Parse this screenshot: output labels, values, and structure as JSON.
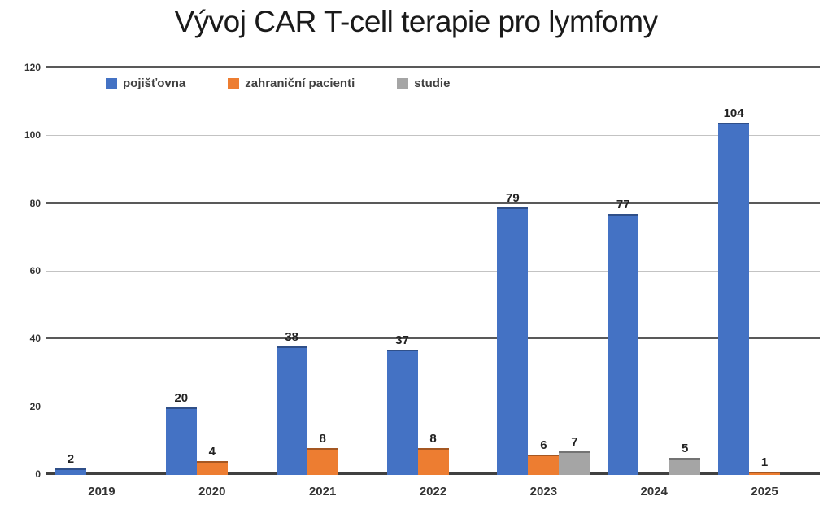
{
  "chart_data": {
    "type": "bar",
    "title": "Vývoj CAR T-cell terapie pro lymfomy",
    "categories": [
      "2019",
      "2020",
      "2021",
      "2022",
      "2023",
      "2024",
      "2025"
    ],
    "series": [
      {
        "name": "pojišťovna",
        "color": "#4472C4",
        "values": [
          2,
          20,
          38,
          37,
          79,
          77,
          104
        ]
      },
      {
        "name": "zahraniční pacienti",
        "color": "#ED7D31",
        "values": [
          0,
          4,
          8,
          8,
          6,
          0,
          1
        ]
      },
      {
        "name": "studie",
        "color": "#A5A5A5",
        "values": [
          0,
          0,
          0,
          0,
          7,
          5,
          0
        ]
      }
    ],
    "xlabel": "",
    "ylabel": "",
    "ylim": [
      0,
      120
    ],
    "yticks": [
      0,
      20,
      40,
      60,
      80,
      100,
      120
    ],
    "grid": true,
    "major_gridlines": [
      40,
      80,
      120
    ],
    "axis_line_value": 0,
    "legend_position": "top-left",
    "data_labels": true,
    "colors": {
      "axis_line": "#404040",
      "major_grid": "#595959",
      "minor_grid": "#c3c3c3",
      "tick_text": "#333333",
      "legend_text": "#404040",
      "value_label_text": "#222222",
      "title_text": "#1a1a1a"
    }
  }
}
